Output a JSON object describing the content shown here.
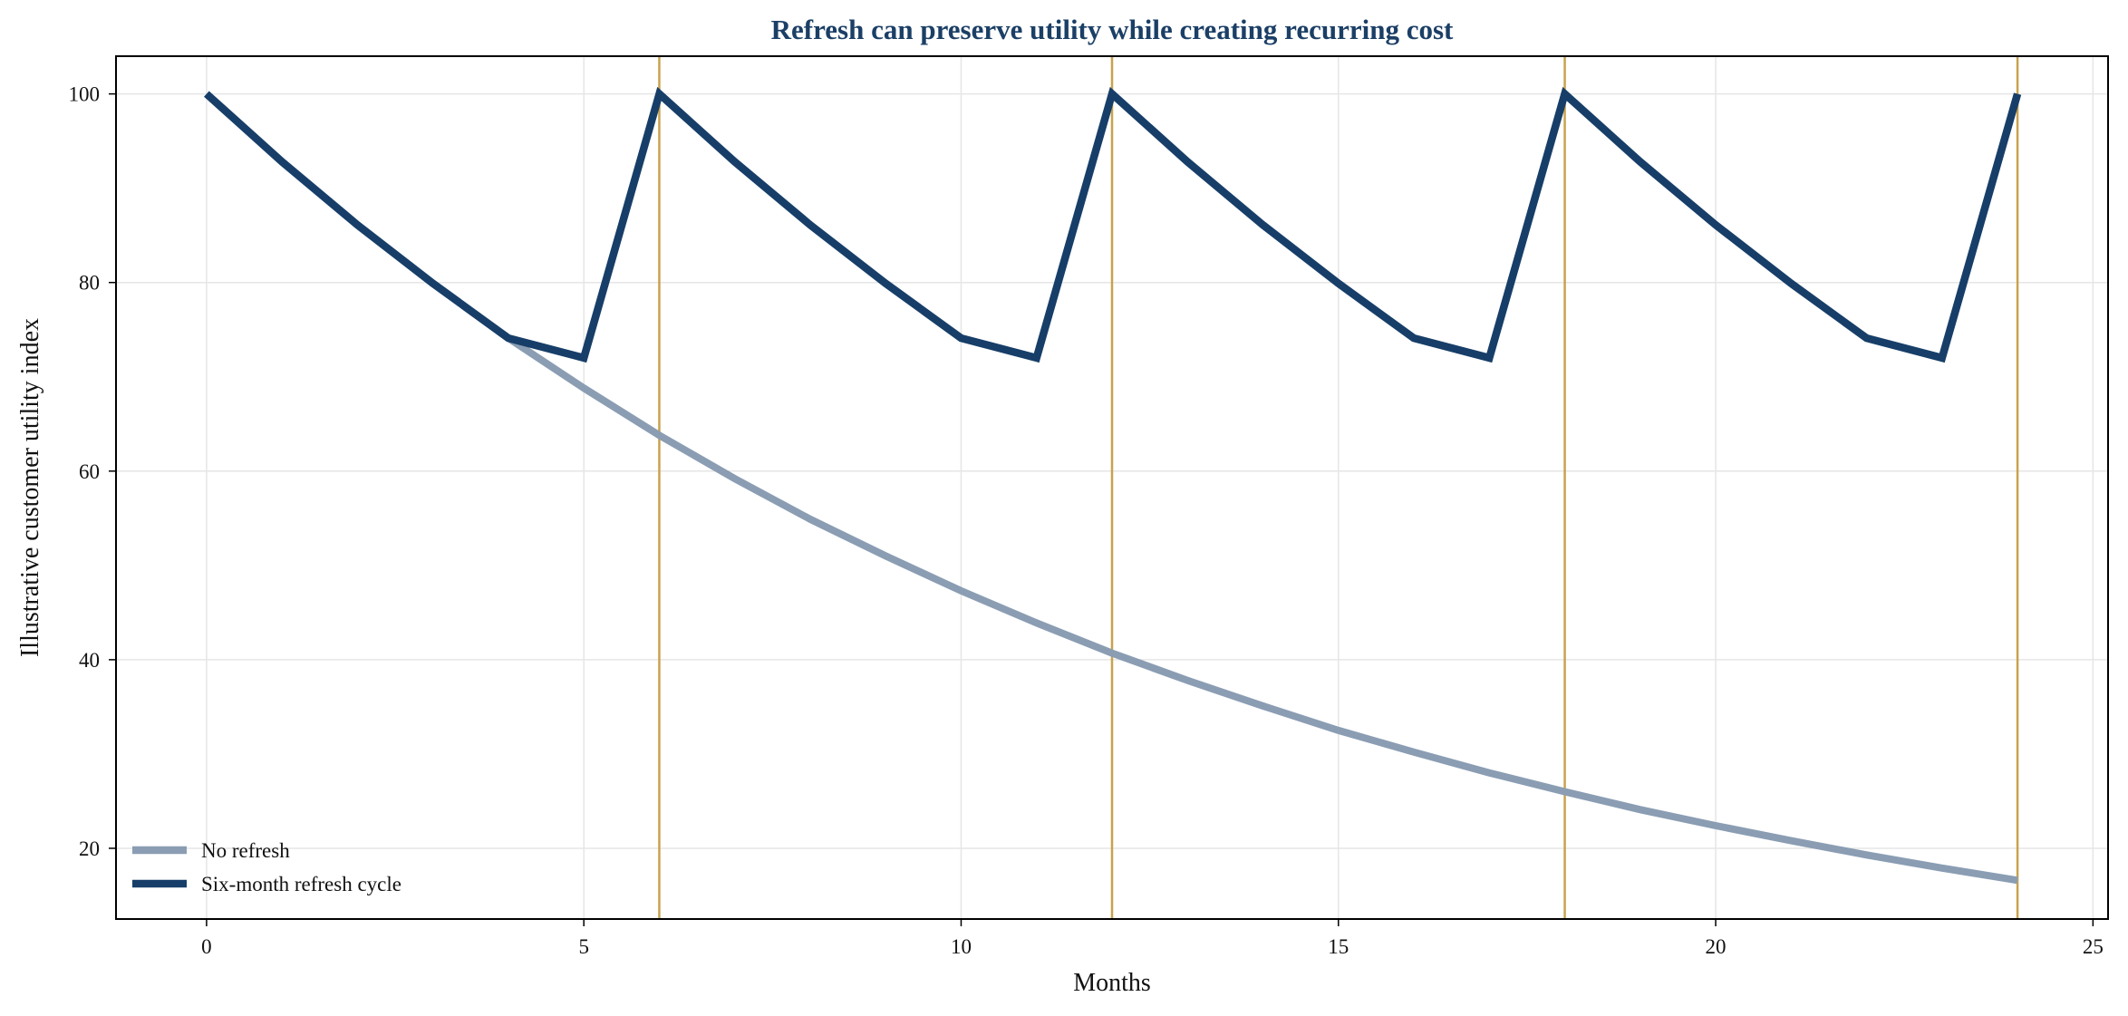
{
  "chart_data": {
    "type": "line",
    "title": "Refresh can preserve utility while creating recurring cost",
    "xlabel": "Months",
    "ylabel": "Illustrative customer utility index",
    "xlim": [
      -1.2,
      25.2
    ],
    "ylim": [
      12.5,
      104
    ],
    "xticks": [
      0,
      5,
      10,
      15,
      20,
      25
    ],
    "yticks": [
      20,
      40,
      60,
      80,
      100
    ],
    "grid": true,
    "legend_position": "lower-left",
    "refresh_markers": [
      6,
      12,
      18,
      24
    ],
    "colors": {
      "title": "#1b3f66",
      "no_refresh": "#8a9db3",
      "refresh_cycle": "#173e68",
      "refresh_marker": "#c8a24e",
      "grid": "#e6e6e6",
      "axis": "#000000"
    },
    "series": [
      {
        "name": "No refresh",
        "color": "#8a9db3",
        "x": [
          0,
          1,
          2,
          3,
          4,
          5,
          6,
          7,
          8,
          9,
          10,
          11,
          12,
          13,
          14,
          15,
          16,
          17,
          18,
          19,
          20,
          21,
          22,
          23,
          24
        ],
        "values": [
          100,
          92.8,
          86.1,
          79.9,
          74.1,
          68.8,
          63.8,
          59.2,
          54.9,
          51.0,
          47.3,
          43.9,
          40.7,
          37.8,
          35.1,
          32.5,
          30.2,
          28.0,
          26.0,
          24.1,
          22.4,
          20.8,
          19.3,
          17.9,
          16.6
        ]
      },
      {
        "name": "Six-month refresh cycle",
        "color": "#173e68",
        "x": [
          0,
          1,
          2,
          3,
          4,
          5,
          6,
          7,
          8,
          9,
          10,
          11,
          12,
          13,
          14,
          15,
          16,
          17,
          18,
          19,
          20,
          21,
          22,
          23,
          24
        ],
        "values": [
          100,
          92.8,
          86.1,
          79.9,
          74.1,
          72,
          100,
          92.8,
          86.1,
          79.9,
          74.1,
          72,
          100,
          92.8,
          86.1,
          79.9,
          74.1,
          72,
          100,
          92.8,
          86.1,
          79.9,
          74.1,
          72,
          100
        ]
      }
    ]
  }
}
